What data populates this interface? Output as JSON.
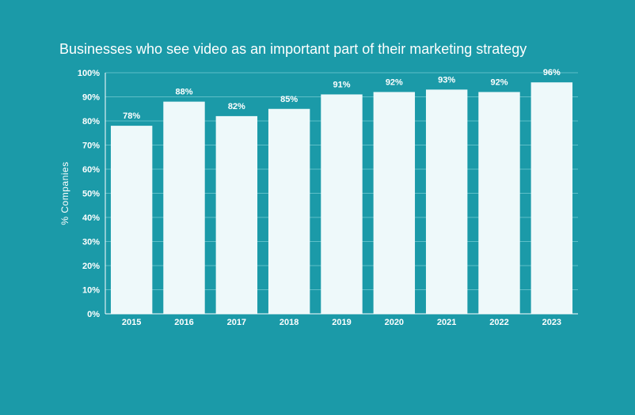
{
  "chart_data": {
    "type": "bar",
    "title": "Businesses who see video as an important part of their marketing strategy",
    "xlabel": "",
    "ylabel": "% Companies",
    "categories": [
      "2015",
      "2016",
      "2017",
      "2018",
      "2019",
      "2020",
      "2021",
      "2022",
      "2023"
    ],
    "values": [
      78,
      88,
      82,
      85,
      91,
      92,
      93,
      92,
      96
    ],
    "value_labels": [
      "78%",
      "88%",
      "82%",
      "85%",
      "91%",
      "92%",
      "93%",
      "92%",
      "96%"
    ],
    "ylim": [
      0,
      100
    ],
    "yticks": [
      0,
      10,
      20,
      30,
      40,
      50,
      60,
      70,
      80,
      90,
      100
    ],
    "ytick_labels": [
      "0%",
      "10%",
      "20%",
      "30%",
      "40%",
      "50%",
      "60%",
      "70%",
      "80%",
      "90%",
      "100%"
    ],
    "grid": true,
    "legend": "none",
    "colors": {
      "background": "#1b9aa8",
      "bar": "#eef9fa",
      "text": "#ffffff",
      "grid": "#5ebec8"
    }
  }
}
